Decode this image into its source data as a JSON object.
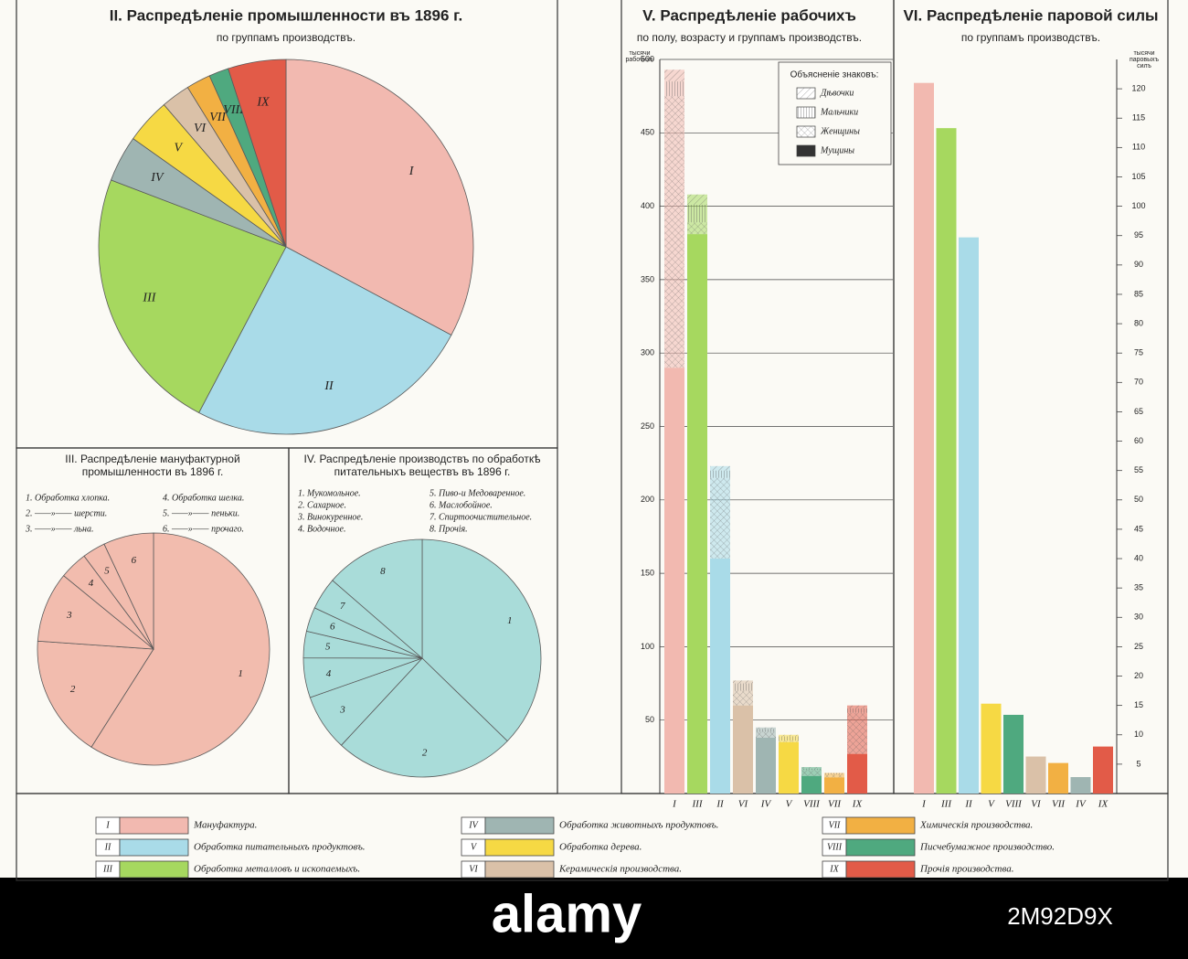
{
  "chart_data": [
    {
      "type": "pie",
      "title": [
        "II. Распредѣленіе промышленности въ 1896 г."
      ],
      "subtitle": "по группамъ производствъ.",
      "categories": [
        "I",
        "II",
        "III",
        "IV",
        "V",
        "VI",
        "VII",
        "VIII",
        "IX"
      ],
      "values": [
        32.8,
        24.9,
        23.1,
        4,
        3.9,
        2.5,
        2.1,
        1.7,
        5
      ]
    },
    {
      "type": "pie",
      "title": [
        "III. Распредѣленіе мануфактурной",
        "промышленности въ 1896 г."
      ],
      "legend": [
        "1. Обработка хлопка.",
        "2. ——»—— шерсти.",
        "3. ——»—— льна.",
        "4. Обработка шелка.",
        "5. ——»—— пеньки.",
        "6. ——»—— прочаго."
      ],
      "categories": [
        "1",
        "2",
        "3",
        "4",
        "5",
        "6"
      ],
      "values": [
        59,
        17.1,
        9.8,
        3.9,
        3.2,
        7
      ],
      "color": "#f2bcae"
    },
    {
      "type": "pie",
      "title": [
        "IV. Распредѣленіе производствъ по обработкѣ",
        "питательныхъ веществъ въ 1896 г."
      ],
      "legend": [
        "1. Мукомольное.",
        "2. Сахарное.",
        "3. Винокуренное.",
        "4. Водочное.",
        "5. Пиво-и Медоваренное.",
        "6. Маслобойное.",
        "7. Спиртоочистительное.",
        "8. Прочія."
      ],
      "categories": [
        "1",
        "2",
        "3",
        "4",
        "5",
        "6",
        "7",
        "8"
      ],
      "values": [
        37.2,
        24.6,
        7.7,
        5.4,
        3.6,
        3.3,
        4.4,
        13.6
      ],
      "color": "#a9dcd9"
    },
    {
      "type": "stacked-bar",
      "title": "V. Распредѣленіе рабочихъ",
      "subtitle": "по полу, возрасту и группамъ производствъ.",
      "ylabel": [
        "тысячи",
        "рабочихъ"
      ],
      "legend_title": "Объясненіе знаковъ:",
      "categories": [
        "I",
        "III",
        "II",
        "VI",
        "IV",
        "V",
        "VIII",
        "VII",
        "IX"
      ],
      "series": [
        {
          "name": "Мущины",
          "pattern": "solid",
          "values": [
            290,
            381,
            160,
            60,
            38,
            35,
            12,
            11,
            27
          ]
        },
        {
          "name": "Женщины",
          "pattern": "cross",
          "values": [
            185,
            8,
            55,
            10,
            4,
            1,
            4,
            2,
            28
          ]
        },
        {
          "name": "Мальчики",
          "pattern": "vert",
          "values": [
            10,
            12,
            5,
            5,
            2,
            3,
            1,
            1,
            3
          ]
        },
        {
          "name": "Дѣвочки",
          "pattern": "diag",
          "values": [
            8,
            7,
            3,
            2,
            1,
            1,
            1,
            0,
            2
          ]
        }
      ],
      "ylim": [
        0,
        500
      ],
      "yticks": [
        50,
        100,
        150,
        200,
        250,
        300,
        350,
        400,
        450,
        500
      ],
      "grid": true
    },
    {
      "type": "bar",
      "title": "VI. Распредѣленіе паровой силы",
      "subtitle": "по группамъ производствъ.",
      "ylabel": [
        "тысячи",
        "паровыхъ",
        "силъ"
      ],
      "categories": [
        "I",
        "III",
        "II",
        "V",
        "VIII",
        "VI",
        "VII",
        "IV",
        "IX"
      ],
      "values": [
        121,
        113.3,
        94.7,
        15.3,
        13.4,
        6.3,
        5.2,
        2.8,
        8
      ],
      "ylim": [
        0,
        125
      ],
      "yticks": [
        5,
        10,
        15,
        20,
        25,
        30,
        35,
        40,
        45,
        50,
        55,
        60,
        65,
        70,
        75,
        80,
        85,
        90,
        95,
        100,
        105,
        110,
        115,
        120
      ],
      "grid": false
    }
  ],
  "legend": {
    "items": [
      {
        "code": "I",
        "name": "Мануфактура.",
        "color": "#f2b9b0"
      },
      {
        "code": "II",
        "name": "Обработка питательныхъ продуктовъ.",
        "color": "#a9dbe8"
      },
      {
        "code": "III",
        "name": "Обработка металловъ и ископаемыхъ.",
        "color": "#a6d85f"
      },
      {
        "code": "IV",
        "name": "Обработка животныхъ продуктовъ.",
        "color": "#9fb5b2"
      },
      {
        "code": "V",
        "name": "Обработка дерева.",
        "color": "#f6d944"
      },
      {
        "code": "VI",
        "name": "Керамическія производства.",
        "color": "#dac1a8"
      },
      {
        "code": "VII",
        "name": "Химическія производства.",
        "color": "#f2b043"
      },
      {
        "code": "VIII",
        "name": "Писчебумажное производство.",
        "color": "#4fa97f"
      },
      {
        "code": "IX",
        "name": "Прочія производства.",
        "color": "#e25b48"
      }
    ]
  },
  "footer": {
    "brand": "alamy",
    "id": "2M92D9X"
  }
}
